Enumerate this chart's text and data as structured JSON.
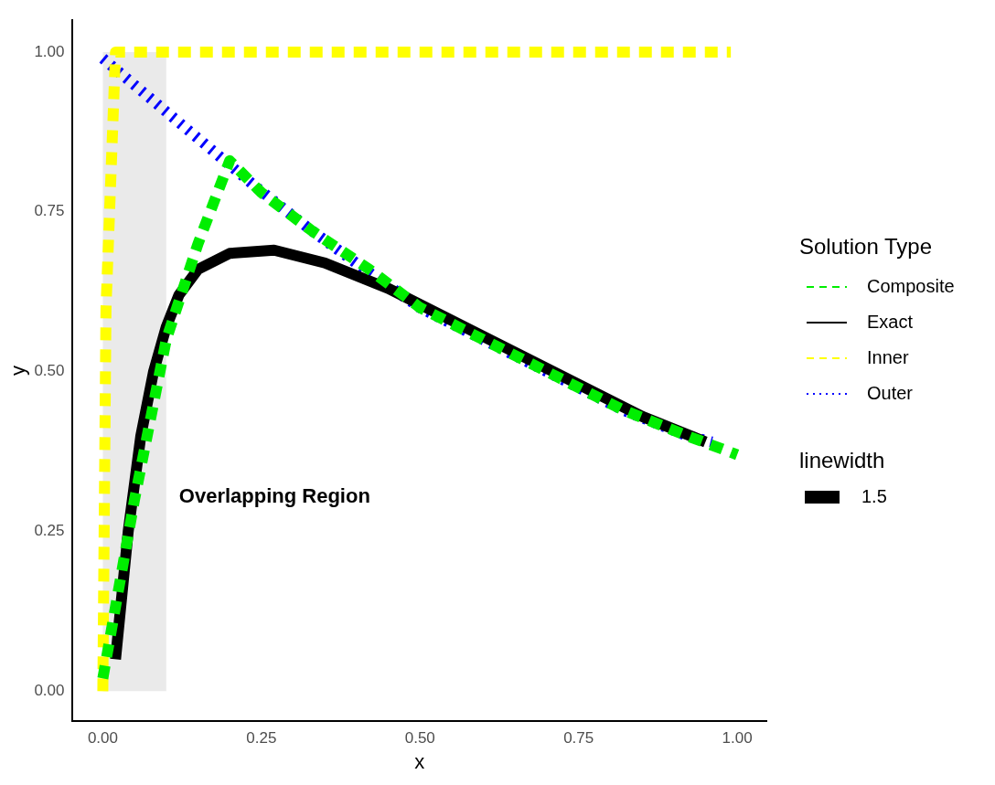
{
  "chart_data": {
    "type": "line",
    "xlabel": "x",
    "ylabel": "y",
    "legend_title": "Solution Type",
    "legend": "right",
    "xlim": [
      -0.0475,
      1.046
    ],
    "ylim": [
      -0.047,
      1.05
    ],
    "xticks": [
      {
        "value": 0,
        "label": "0.00"
      },
      {
        "value": 0.25,
        "label": "0.25"
      },
      {
        "value": 0.5,
        "label": "0.50"
      },
      {
        "value": 0.75,
        "label": "0.75"
      },
      {
        "value": 1,
        "label": "1.00"
      }
    ],
    "yticks": [
      {
        "value": 0,
        "label": "0.00"
      },
      {
        "value": 0.25,
        "label": "0.25"
      },
      {
        "value": 0.5,
        "label": "0.50"
      },
      {
        "value": 0.75,
        "label": "0.75"
      },
      {
        "value": 1,
        "label": "1.00"
      }
    ],
    "grid": false,
    "series": [
      {
        "name": "Composite",
        "color": "#00ee00",
        "line_style": "dashed",
        "x": [
          0.0,
          0.05,
          0.1,
          0.15,
          0.2,
          0.25,
          0.33,
          0.42,
          0.5,
          0.62,
          0.72,
          0.82,
          0.92,
          1.0
        ],
        "values": [
          0.02,
          0.3,
          0.55,
          0.7,
          0.83,
          0.78,
          0.72,
          0.66,
          0.6,
          0.54,
          0.49,
          0.44,
          0.4,
          0.37
        ]
      },
      {
        "name": "Exact",
        "color": "#000000",
        "line_style": "solid",
        "x": [
          0.02,
          0.04,
          0.06,
          0.08,
          0.1,
          0.12,
          0.15,
          0.2,
          0.27,
          0.35,
          0.45,
          0.55,
          0.65,
          0.75,
          0.85,
          0.95
        ],
        "values": [
          0.05,
          0.25,
          0.4,
          0.5,
          0.57,
          0.62,
          0.66,
          0.685,
          0.69,
          0.67,
          0.63,
          0.58,
          0.53,
          0.48,
          0.43,
          0.39
        ]
      },
      {
        "name": "Inner",
        "color": "#ffff00",
        "line_style": "dashed",
        "x": [
          0.0,
          0.005,
          0.02,
          0.1,
          0.2,
          0.4,
          0.6,
          0.8,
          0.99
        ],
        "values": [
          0.0,
          0.6,
          1.0,
          1.0,
          1.0,
          1.0,
          1.0,
          1.0,
          1.0
        ]
      },
      {
        "name": "Outer",
        "color": "#0000ff",
        "line_style": "dotted",
        "x": [
          0.0,
          0.24,
          0.33,
          0.42,
          0.5,
          0.62,
          0.72,
          0.82,
          0.92,
          0.96
        ],
        "values": [
          0.99,
          0.79,
          0.72,
          0.655,
          0.6,
          0.54,
          0.49,
          0.44,
          0.4,
          0.39
        ]
      }
    ],
    "bands": [
      {
        "axis": "x",
        "from": 0,
        "to": 0.1,
        "label": "Overlapping Region",
        "color": "#e6e6e6"
      }
    ],
    "annotations": [
      "linewidth",
      "1.5"
    ]
  }
}
